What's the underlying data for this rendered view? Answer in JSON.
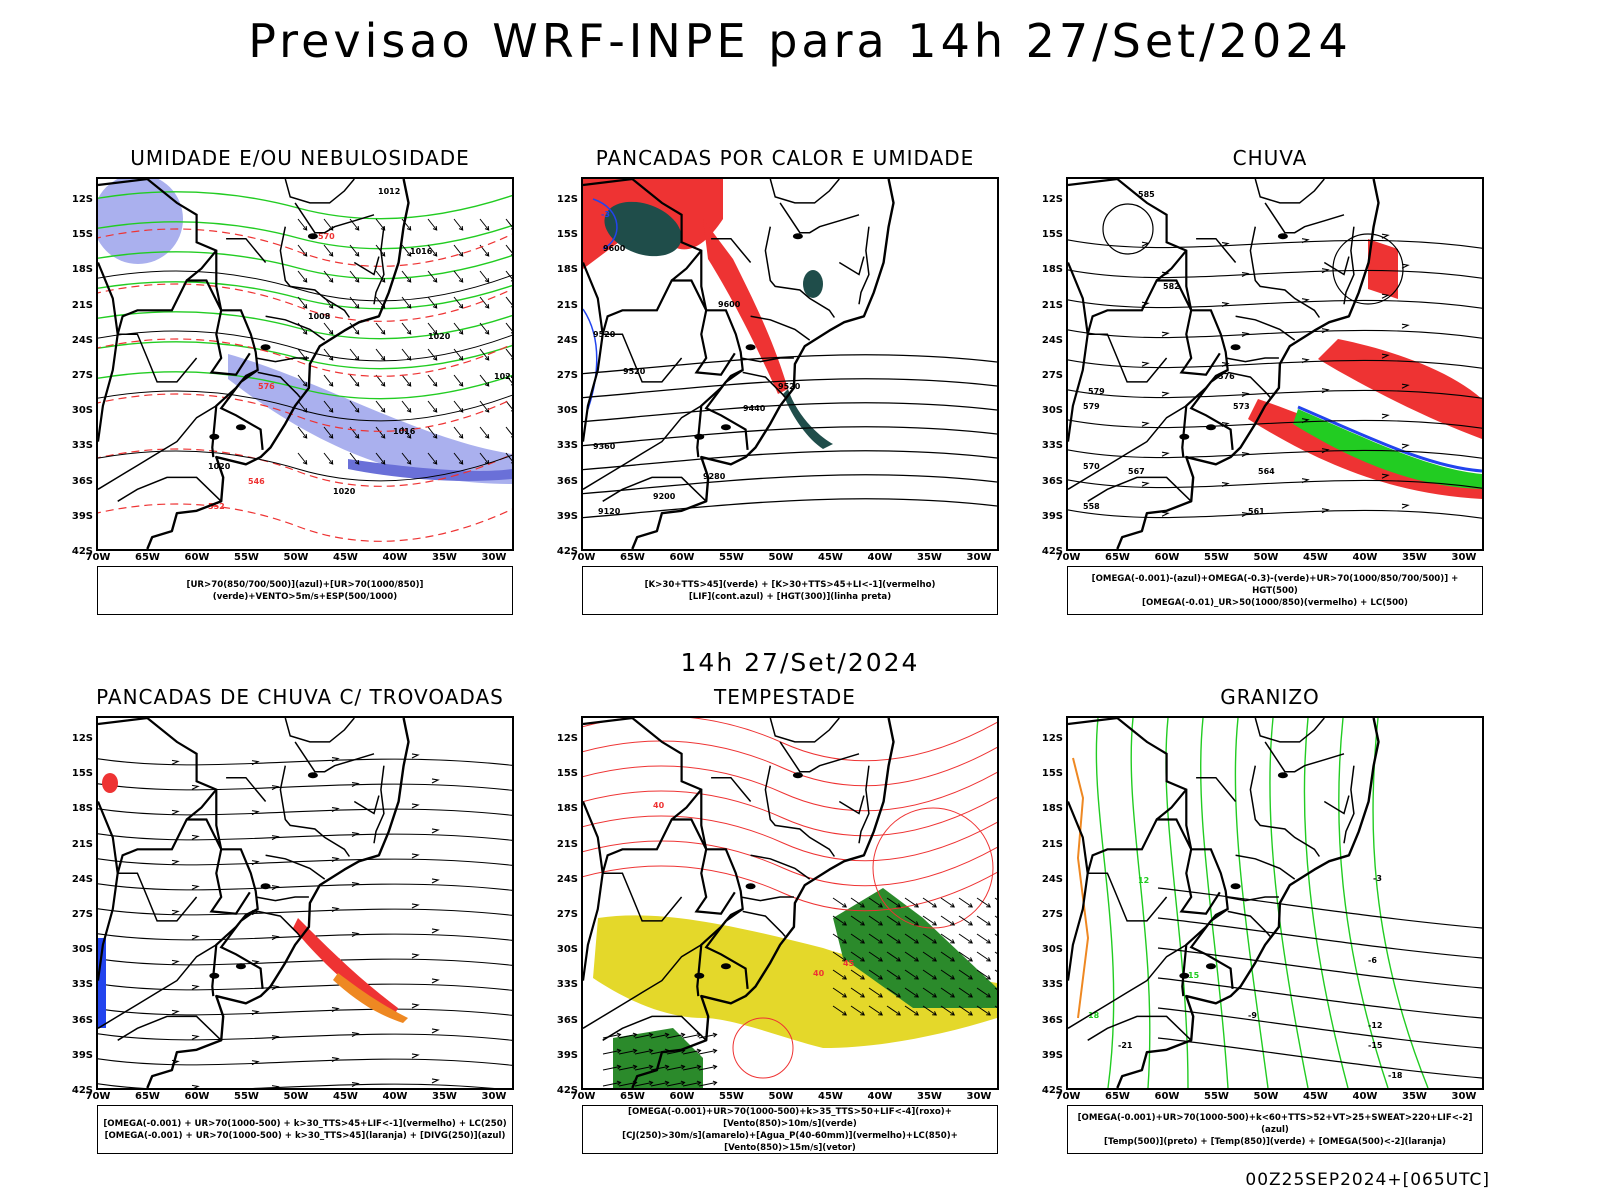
{
  "page": {
    "title": "Previsao WRF-INPE  para 14h 27/Set/2024",
    "mid_label": "14h 27/Set/2024",
    "footer": "00Z25SEP2024+[065UTC]"
  },
  "axes": {
    "lat_labels": [
      "12S",
      "15S",
      "18S",
      "21S",
      "24S",
      "27S",
      "30S",
      "33S",
      "36S",
      "39S",
      "42S"
    ],
    "lon_labels": [
      "70W",
      "65W",
      "60W",
      "55W",
      "50W",
      "45W",
      "40W",
      "35W",
      "30W"
    ]
  },
  "colors": {
    "black": "#000000",
    "red": "#ee3333",
    "green": "#22cc22",
    "blue": "#2244ee",
    "lavender": "#aab0ee",
    "teal": "#1f4d4a",
    "yellow": "#e4d82a",
    "orange": "#ee8822",
    "purple": "#7744cc"
  },
  "panels": [
    {
      "title": "UMIDADE E/OU NEBULOSIDADE",
      "legend": [
        "[UR>70(850/700/500)](azul)+[UR>70(1000/850)](verde)+VENTO>5m/s+ESP(500/1000)"
      ],
      "labels": [
        "1008",
        "1012",
        "1016",
        "1020",
        "1024",
        "552",
        "546",
        "570",
        "576",
        "564"
      ]
    },
    {
      "title": "PANCADAS POR CALOR E UMIDADE",
      "legend": [
        "[K>30+TTS>45](verde) + [K>30+TTS>45+LI<-1](vermelho)",
        "[LIF](cont.azul) + [HGT(300)](linha preta)"
      ],
      "labels": [
        "9600",
        "9520",
        "9440",
        "9360",
        "9280",
        "9200",
        "9120",
        "-3"
      ]
    },
    {
      "title": "CHUVA",
      "legend": [
        "[OMEGA(-0.001)-(azul)+OMEGA(-0.3)-(verde)+UR>70(1000/850/700/500)] + HGT(500)",
        "[OMEGA(-0.01)_UR>50(1000/850)(vermelho) + LC(500)"
      ],
      "labels": [
        "585",
        "582",
        "579",
        "576",
        "573",
        "570",
        "567",
        "564",
        "561",
        "558"
      ]
    },
    {
      "title": "PANCADAS DE CHUVA C/ TROVOADAS",
      "legend": [
        "[OMEGA(-0.001) + UR>70(1000-500) + k>30_TTS>45+LIF<-1](vermelho) + LC(250)",
        "[OMEGA(-0.001) + UR>70(1000-500) + k>30_TTS>45](laranja) + [DIVG(250)](azul)"
      ],
      "labels": []
    },
    {
      "title": "TEMPESTADE",
      "legend": [
        "[OMEGA(-0.001)+UR>70(1000-500)+k>35_TTS>50+LIF<-4](roxo)+[Vento(850)>10m/s](verde)",
        "[CJ(250)>30m/s](amarelo)+[Agua_P(40-60mm)](vermelho)+LC(850)+[Vento(850)>15m/s](vetor)"
      ],
      "labels": [
        "40",
        "45",
        "40"
      ]
    },
    {
      "title": "GRANIZO",
      "legend": [
        "[OMEGA(-0.001)+UR>70(1000-500)+k<60+TTS>52+VT>25+SWEAT>220+LIF<-2](azul)",
        "[Temp(500)](preto) + [Temp(850)](verde) + [OMEGA(500)<-2](laranja)"
      ],
      "labels": [
        "-3",
        "-6",
        "-9",
        "-12",
        "-15",
        "-18",
        "-21",
        "12",
        "15",
        "18"
      ]
    }
  ]
}
